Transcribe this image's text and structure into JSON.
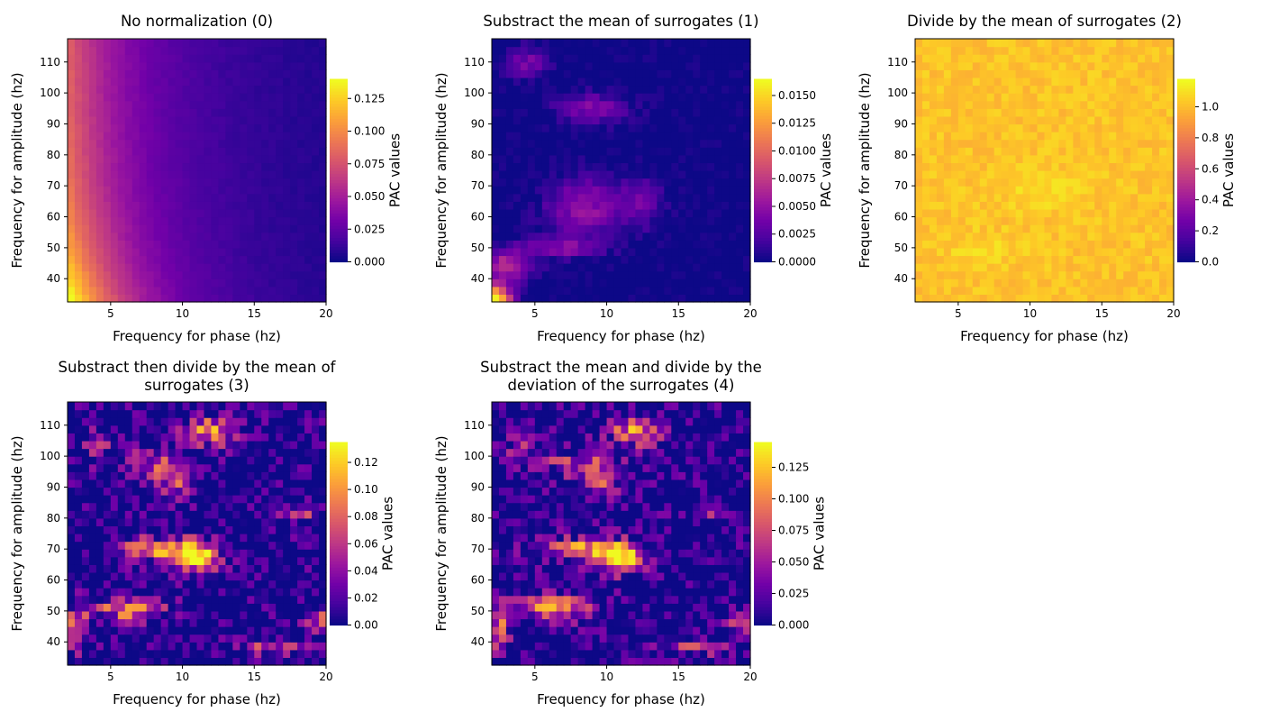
{
  "figure": {
    "colormap": "plasma",
    "colormap_stops": [
      "#0d0887",
      "#46039f",
      "#7201a8",
      "#9c179e",
      "#bd3786",
      "#d8576b",
      "#ed7953",
      "#fb9f3a",
      "#fdca26",
      "#f0f921"
    ]
  },
  "chart_data": [
    {
      "type": "heatmap",
      "title_lines": [
        "No normalization (0)"
      ],
      "xlabel": "Frequency for phase (hz)",
      "ylabel": "Frequency for amplitude (hz)",
      "xlim": [
        2,
        20
      ],
      "ylim": [
        32.5,
        117.5
      ],
      "xticks": [
        5,
        10,
        15,
        20
      ],
      "yticks": [
        40,
        50,
        60,
        70,
        80,
        90,
        100,
        110
      ],
      "colorbar": {
        "label": "PAC values",
        "min": 0.0,
        "max": 0.14,
        "ticks": [
          0.0,
          0.025,
          0.05,
          0.075,
          0.1,
          0.125
        ],
        "tick_labels": [
          "0.000",
          "0.025",
          "0.050",
          "0.075",
          "0.100",
          "0.125"
        ]
      },
      "pattern": "lowfreq-decay"
    },
    {
      "type": "heatmap",
      "title_lines": [
        "Substract the mean of surrogates (1)"
      ],
      "xlabel": "Frequency for phase (hz)",
      "ylabel": "Frequency for amplitude (hz)",
      "xlim": [
        2,
        20
      ],
      "ylim": [
        32.5,
        117.5
      ],
      "xticks": [
        5,
        10,
        15,
        20
      ],
      "yticks": [
        40,
        50,
        60,
        70,
        80,
        90,
        100,
        110
      ],
      "colorbar": {
        "label": "PAC values",
        "min": 0.0,
        "max": 0.0165,
        "ticks": [
          0.0,
          0.0025,
          0.005,
          0.0075,
          0.01,
          0.0125,
          0.015
        ],
        "tick_labels": [
          "0.0000",
          "0.0025",
          "0.0050",
          "0.0075",
          "0.0100",
          "0.0125",
          "0.0150"
        ]
      },
      "pattern": "dark-patches"
    },
    {
      "type": "heatmap",
      "title_lines": [
        "Divide by the mean of surrogates (2)"
      ],
      "xlabel": "Frequency for phase (hz)",
      "ylabel": "Frequency for amplitude (hz)",
      "xlim": [
        2,
        20
      ],
      "ylim": [
        32.5,
        117.5
      ],
      "xticks": [
        5,
        10,
        15,
        20
      ],
      "yticks": [
        40,
        50,
        60,
        70,
        80,
        90,
        100,
        110
      ],
      "colorbar": {
        "label": "PAC values",
        "min": 0.0,
        "max": 1.18,
        "ticks": [
          0.0,
          0.2,
          0.4,
          0.6,
          0.8,
          1.0
        ],
        "tick_labels": [
          "0.0",
          "0.2",
          "0.4",
          "0.6",
          "0.8",
          "1.0"
        ]
      },
      "pattern": "near-one"
    },
    {
      "type": "heatmap",
      "title_lines": [
        "Substract then divide by the mean of",
        "surrogates (3)"
      ],
      "xlabel": "Frequency for phase (hz)",
      "ylabel": "Frequency for amplitude (hz)",
      "xlim": [
        2,
        20
      ],
      "ylim": [
        32.5,
        117.5
      ],
      "xticks": [
        5,
        10,
        15,
        20
      ],
      "yticks": [
        40,
        50,
        60,
        70,
        80,
        90,
        100,
        110
      ],
      "colorbar": {
        "label": "PAC values",
        "min": 0.0,
        "max": 0.135,
        "ticks": [
          0.0,
          0.02,
          0.04,
          0.06,
          0.08,
          0.1,
          0.12
        ],
        "tick_labels": [
          "0.00",
          "0.02",
          "0.04",
          "0.06",
          "0.08",
          "0.10",
          "0.12"
        ]
      },
      "pattern": "blobs"
    },
    {
      "type": "heatmap",
      "title_lines": [
        "Substract the mean and divide by the",
        "deviation of the surrogates (4)"
      ],
      "xlabel": "Frequency for phase (hz)",
      "ylabel": "Frequency for amplitude (hz)",
      "xlim": [
        2,
        20
      ],
      "ylim": [
        32.5,
        117.5
      ],
      "xticks": [
        5,
        10,
        15,
        20
      ],
      "yticks": [
        40,
        50,
        60,
        70,
        80,
        90,
        100,
        110
      ],
      "colorbar": {
        "label": "PAC values",
        "min": 0.0,
        "max": 0.145,
        "ticks": [
          0.0,
          0.025,
          0.05,
          0.075,
          0.1,
          0.125
        ],
        "tick_labels": [
          "0.000",
          "0.025",
          "0.050",
          "0.075",
          "0.100",
          "0.125"
        ]
      },
      "pattern": "blobs"
    }
  ]
}
